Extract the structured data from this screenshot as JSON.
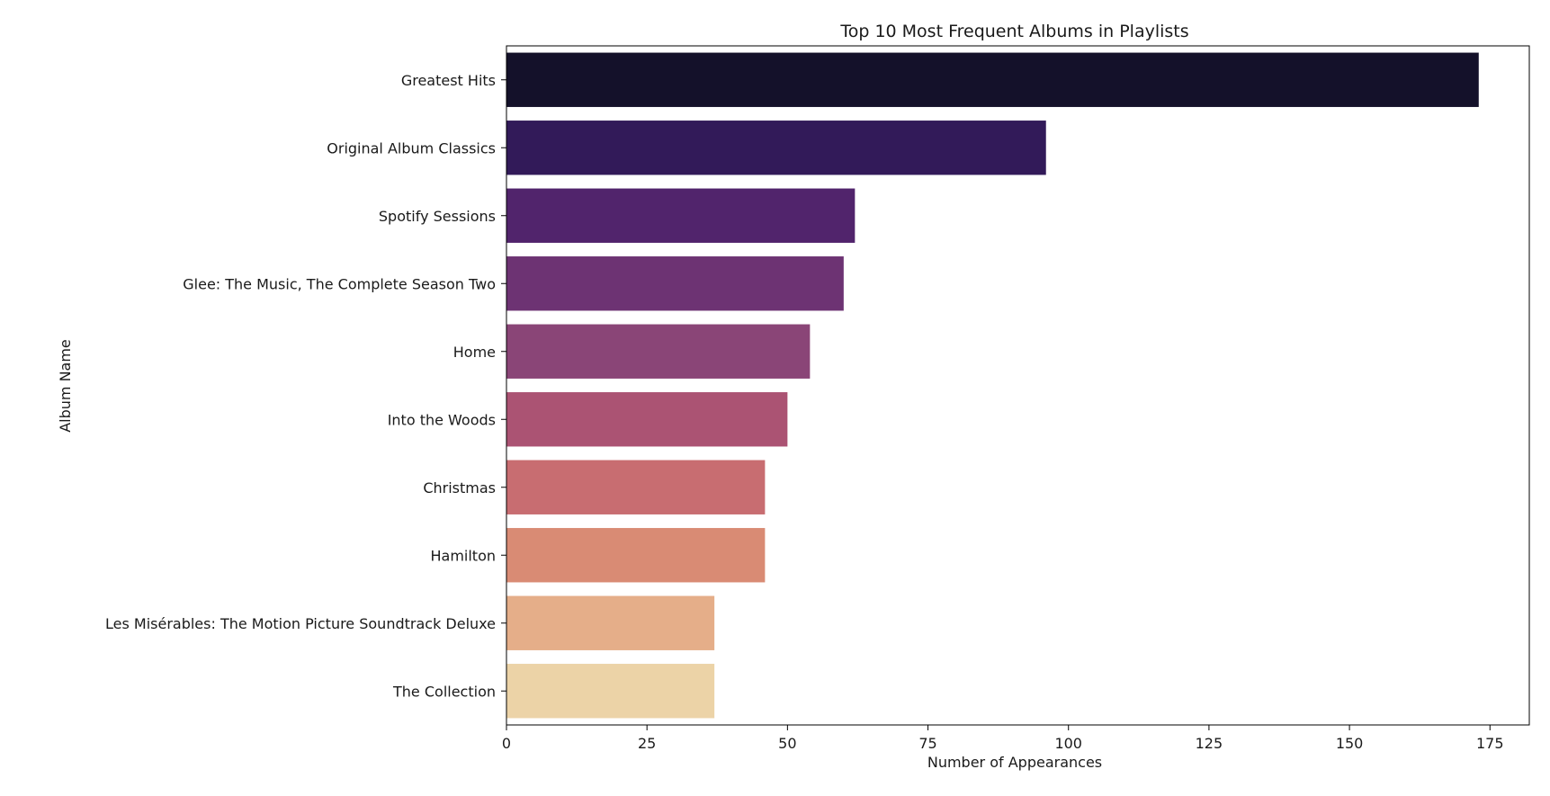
{
  "chart_data": {
    "type": "bar",
    "orientation": "horizontal",
    "title": "Top 10 Most Frequent Albums in Playlists",
    "xlabel": "Number of Appearances",
    "ylabel": "Album Name",
    "xlim": [
      0,
      182
    ],
    "xticks": [
      "0",
      "25",
      "50",
      "75",
      "100",
      "125",
      "150",
      "175"
    ],
    "grid": false,
    "categories": [
      "Greatest Hits",
      "Original Album Classics",
      "Spotify Sessions",
      "Glee: The Music, The Complete Season Two",
      "Home",
      "Into the Woods",
      "Christmas",
      "Hamilton",
      "Les Misérables: The Motion Picture Soundtrack Deluxe",
      "The Collection"
    ],
    "values": [
      173,
      96,
      62,
      60,
      54,
      50,
      46,
      46,
      37,
      37
    ],
    "colors": [
      "#14112a",
      "#321a59",
      "#51246c",
      "#6d3373",
      "#8a4577",
      "#ab5373",
      "#c86d71",
      "#d98b74",
      "#e5ae89",
      "#ecd3a7"
    ]
  }
}
